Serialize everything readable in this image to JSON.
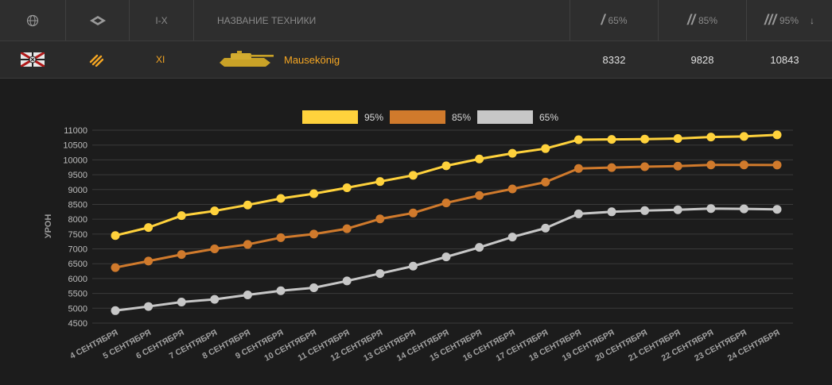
{
  "header": {
    "col_tier": "I-X",
    "col_name": "НАЗВАНИЕ ТЕХНИКИ",
    "col_65": "65%",
    "col_85": "85%",
    "col_95": "95%",
    "sort_icon": "arrow-down-icon"
  },
  "vehicle": {
    "tier": "XI",
    "name": "Mausekönig",
    "p65": "8332",
    "p85": "9828",
    "p95": "10843"
  },
  "colors": {
    "gold": "#ffd23c",
    "orange": "#d07a2c",
    "silver": "#c7c7c7",
    "accent": "#f5a623"
  },
  "chart_data": {
    "type": "line",
    "ylabel": "УРОН",
    "xlabel": "",
    "ylim": [
      4500,
      11000
    ],
    "yticks": [
      4500,
      5000,
      5500,
      6000,
      6500,
      7000,
      7500,
      8000,
      8500,
      9000,
      9500,
      10000,
      10500,
      11000
    ],
    "grid": true,
    "legend_position": "top-center",
    "categories": [
      "4 СЕНТЯБРЯ",
      "5 СЕНТЯБРЯ",
      "6 СЕНТЯБРЯ",
      "7 СЕНТЯБРЯ",
      "8 СЕНТЯБРЯ",
      "9 СЕНТЯБРЯ",
      "10 СЕНТЯБРЯ",
      "11 СЕНТЯБРЯ",
      "12 СЕНТЯБРЯ",
      "13 СЕНТЯБРЯ",
      "14 СЕНТЯБРЯ",
      "15 СЕНТЯБРЯ",
      "16 СЕНТЯБРЯ",
      "17 СЕНТЯБРЯ",
      "18 СЕНТЯБРЯ",
      "19 СЕНТЯБРЯ",
      "20 СЕНТЯБРЯ",
      "21 СЕНТЯБРЯ",
      "22 СЕНТЯБРЯ",
      "23 СЕНТЯБРЯ",
      "24 СЕНТЯБРЯ"
    ],
    "series": [
      {
        "name": "95%",
        "color": "#ffd23c",
        "values": [
          7450,
          7720,
          8120,
          8280,
          8480,
          8700,
          8860,
          9060,
          9270,
          9480,
          9800,
          10030,
          10220,
          10380,
          10680,
          10690,
          10700,
          10720,
          10770,
          10790,
          10843
        ]
      },
      {
        "name": "85%",
        "color": "#d07a2c",
        "values": [
          6370,
          6590,
          6810,
          7000,
          7150,
          7380,
          7500,
          7680,
          8010,
          8210,
          8550,
          8800,
          9020,
          9250,
          9710,
          9740,
          9770,
          9790,
          9830,
          9830,
          9828
        ]
      },
      {
        "name": "65%",
        "color": "#c7c7c7",
        "values": [
          4920,
          5060,
          5210,
          5300,
          5450,
          5590,
          5690,
          5920,
          6170,
          6420,
          6730,
          7050,
          7400,
          7700,
          8180,
          8250,
          8290,
          8320,
          8360,
          8350,
          8332
        ]
      }
    ]
  }
}
